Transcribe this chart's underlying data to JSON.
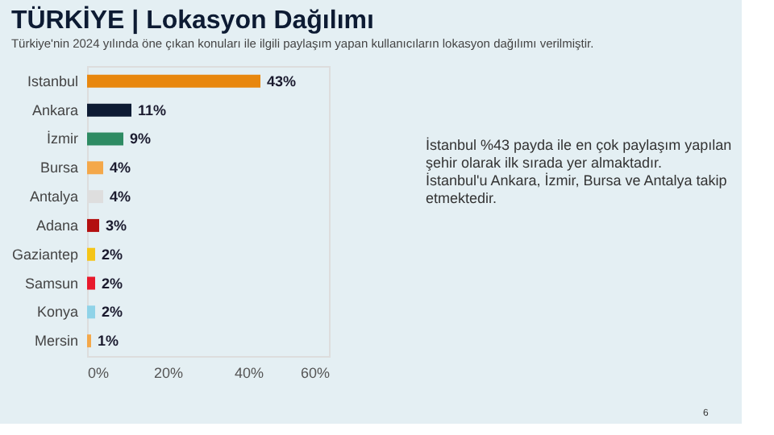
{
  "chart_data": {
    "type": "bar",
    "orientation": "horizontal",
    "title": "TÜRKİYE | Lokasyon Dağılımı",
    "subtitle": "Türkiye'nin 2024 yılında öne çıkan konuları ile ilgili paylaşım yapan kullanıcıların lokasyon dağılımı verilmiştir.",
    "categories": [
      "Istanbul",
      "Ankara",
      "İzmir",
      "Bursa",
      "Antalya",
      "Adana",
      "Gaziantep",
      "Samsun",
      "Konya",
      "Mersin"
    ],
    "values": [
      43,
      11,
      9,
      4,
      4,
      3,
      2,
      2,
      2,
      1
    ],
    "colors": [
      "#e8870e",
      "#0d1b33",
      "#2e8b63",
      "#f4a84a",
      "#dedede",
      "#b30f0f",
      "#f5c518",
      "#e8192c",
      "#8fd3e8",
      "#f4a84a"
    ],
    "value_labels": [
      "43%",
      "11%",
      "9%",
      "4%",
      "4%",
      "3%",
      "2%",
      "2%",
      "2%",
      "1%"
    ],
    "xlim": [
      0,
      60
    ],
    "xticks": [
      {
        "value": 0,
        "label": "0%"
      },
      {
        "value": 20,
        "label": "20%"
      },
      {
        "value": 40,
        "label": "40%"
      },
      {
        "value": 60,
        "label": "60%"
      }
    ],
    "grid": false,
    "legend": false,
    "annotations": [
      "İstanbul %43 payda ile en çok paylaşım yapılan şehir olarak ilk sırada yer almaktadır. İstanbul'u Ankara, İzmir, Bursa ve Antalya takip etmektedir.",
      "6"
    ]
  }
}
